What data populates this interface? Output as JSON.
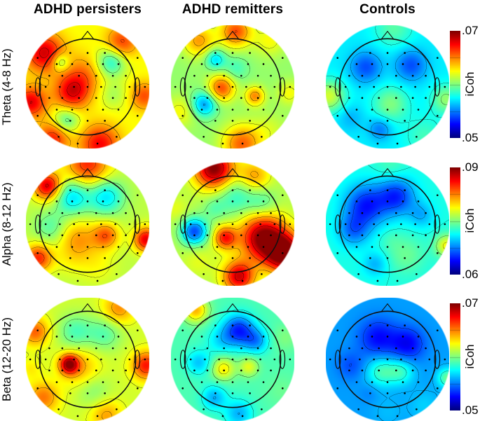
{
  "chart_data": {
    "type": "heatmap",
    "subtype": "eeg-scalp-topography-grid",
    "colormap": "jet",
    "grid": {
      "n_rows": 3,
      "n_cols": 3
    },
    "columns": [
      "ADHD persisters",
      "ADHD remitters",
      "Controls"
    ],
    "rows": [
      "Theta (4-8 Hz)",
      "Alpha (8-12 Hz)",
      "Beta (12-20 Hz)"
    ],
    "colorbars": [
      {
        "row": "Theta (4-8 Hz)",
        "label": "iCoh",
        "min": 0.05,
        "max": 0.07,
        "min_label": ".05",
        "max_label": ".07"
      },
      {
        "row": "Alpha (8-12 Hz)",
        "label": "iCoh",
        "min": 0.06,
        "max": 0.09,
        "min_label": ".06",
        "max_label": ".09"
      },
      {
        "row": "Beta (12-20 Hz)",
        "label": "iCoh",
        "min": 0.05,
        "max": 0.07,
        "min_label": ".05",
        "max_label": ".07"
      }
    ],
    "value_encoding": "base and blob values are normalized 0-1 within the row colorbar range; blobs are [x, y, sigma, value] in head-disk coordinates (x right, y down, radius 1)",
    "contour_levels": 10,
    "maps": [
      {
        "row": "Theta (4-8 Hz)",
        "col": "ADHD persisters",
        "base": 0.62,
        "blobs": [
          [
            -0.25,
            0.08,
            0.2,
            0.9
          ],
          [
            -0.05,
            -0.22,
            0.22,
            0.74
          ],
          [
            0.38,
            -0.4,
            0.17,
            0.4
          ],
          [
            -0.44,
            -0.4,
            0.1,
            0.44
          ],
          [
            -0.35,
            0.55,
            0.15,
            0.44
          ],
          [
            0.42,
            0.12,
            0.16,
            0.54
          ],
          [
            -0.7,
            -0.55,
            0.22,
            0.92
          ],
          [
            0.55,
            -0.72,
            0.18,
            0.82
          ],
          [
            -0.92,
            0.25,
            0.18,
            0.9
          ],
          [
            0.2,
            0.93,
            0.22,
            0.88
          ],
          [
            0.92,
            0.15,
            0.16,
            0.8
          ],
          [
            -0.55,
            0.82,
            0.18,
            0.85
          ]
        ]
      },
      {
        "row": "Theta (4-8 Hz)",
        "col": "ADHD remitters",
        "base": 0.52,
        "blobs": [
          [
            -0.18,
            0.02,
            0.15,
            0.8
          ],
          [
            0.36,
            0.15,
            0.11,
            0.74
          ],
          [
            -0.46,
            0.28,
            0.14,
            0.28
          ],
          [
            -0.28,
            -0.45,
            0.11,
            0.34
          ],
          [
            0.05,
            -0.3,
            0.14,
            0.44
          ],
          [
            0.05,
            -0.9,
            0.18,
            0.8
          ],
          [
            -0.55,
            -0.75,
            0.18,
            0.72
          ],
          [
            0.6,
            -0.75,
            0.18,
            0.62
          ],
          [
            0.15,
            0.93,
            0.22,
            0.78
          ],
          [
            -0.85,
            0.4,
            0.18,
            0.62
          ],
          [
            0.92,
            0.1,
            0.14,
            0.62
          ],
          [
            0.6,
            0.7,
            0.2,
            0.58
          ]
        ]
      },
      {
        "row": "Theta (4-8 Hz)",
        "col": "Controls",
        "base": 0.36,
        "blobs": [
          [
            -0.35,
            -0.32,
            0.18,
            0.2
          ],
          [
            0.38,
            -0.35,
            0.18,
            0.2
          ],
          [
            0.05,
            0.28,
            0.2,
            0.5
          ],
          [
            -0.12,
            0.68,
            0.13,
            0.24
          ],
          [
            -0.95,
            0.15,
            0.18,
            0.58
          ],
          [
            0.95,
            0.2,
            0.16,
            0.52
          ],
          [
            0.1,
            -0.95,
            0.22,
            0.46
          ],
          [
            0.6,
            0.8,
            0.22,
            0.44
          ],
          [
            -0.6,
            0.5,
            0.15,
            0.3
          ]
        ]
      },
      {
        "row": "Alpha (8-12 Hz)",
        "col": "ADHD persisters",
        "base": 0.56,
        "blobs": [
          [
            -0.25,
            -0.45,
            0.2,
            0.34
          ],
          [
            0.3,
            -0.45,
            0.2,
            0.35
          ],
          [
            0.0,
            -0.97,
            0.25,
            0.84
          ],
          [
            -0.65,
            -0.62,
            0.16,
            0.92
          ],
          [
            -0.15,
            0.25,
            0.22,
            0.72
          ],
          [
            0.3,
            0.18,
            0.15,
            0.78
          ],
          [
            0.95,
            0.25,
            0.14,
            0.9
          ],
          [
            -0.8,
            0.55,
            0.16,
            0.84
          ],
          [
            0.15,
            0.65,
            0.22,
            0.62
          ],
          [
            -0.6,
            0.05,
            0.18,
            0.46
          ],
          [
            -0.3,
            0.6,
            0.18,
            0.6
          ]
        ]
      },
      {
        "row": "Alpha (8-12 Hz)",
        "col": "ADHD remitters",
        "base": 0.55,
        "blobs": [
          [
            -0.3,
            -0.9,
            0.22,
            1.0
          ],
          [
            0.35,
            -0.78,
            0.18,
            0.72
          ],
          [
            0.05,
            -0.45,
            0.22,
            0.42
          ],
          [
            0.48,
            -0.35,
            0.17,
            0.45
          ],
          [
            -0.62,
            0.12,
            0.15,
            0.2
          ],
          [
            0.5,
            0.22,
            0.26,
            1.0
          ],
          [
            0.85,
            0.48,
            0.22,
            1.0
          ],
          [
            -0.12,
            0.22,
            0.13,
            0.85
          ],
          [
            0.1,
            0.85,
            0.18,
            0.92
          ],
          [
            -0.55,
            0.6,
            0.18,
            0.6
          ],
          [
            -0.92,
            -0.25,
            0.14,
            0.6
          ],
          [
            -0.3,
            -0.25,
            0.13,
            0.48
          ]
        ]
      },
      {
        "row": "Alpha (8-12 Hz)",
        "col": "Controls",
        "base": 0.4,
        "blobs": [
          [
            -0.35,
            -0.3,
            0.24,
            0.15
          ],
          [
            0.15,
            -0.45,
            0.21,
            0.17
          ],
          [
            -0.55,
            0.1,
            0.18,
            0.24
          ],
          [
            0.3,
            0.5,
            0.22,
            0.48
          ],
          [
            0.96,
            0.35,
            0.13,
            0.62
          ],
          [
            0.05,
            0.25,
            0.13,
            0.43
          ],
          [
            -0.2,
            0.65,
            0.14,
            0.3
          ],
          [
            0.05,
            -0.97,
            0.18,
            0.45
          ],
          [
            0.55,
            -0.15,
            0.15,
            0.3
          ]
        ]
      },
      {
        "row": "Beta (12-20 Hz)",
        "col": "ADHD persisters",
        "base": 0.58,
        "blobs": [
          [
            -0.2,
            -0.45,
            0.2,
            0.45
          ],
          [
            0.28,
            -0.42,
            0.2,
            0.46
          ],
          [
            -0.3,
            0.08,
            0.11,
            0.95
          ],
          [
            -0.12,
            0.14,
            0.22,
            0.7
          ],
          [
            0.95,
            0.1,
            0.16,
            0.86
          ],
          [
            -0.85,
            -0.45,
            0.16,
            0.78
          ],
          [
            0.5,
            -0.82,
            0.18,
            0.74
          ],
          [
            -0.72,
            0.62,
            0.18,
            0.76
          ],
          [
            0.3,
            0.9,
            0.18,
            0.72
          ],
          [
            0.1,
            0.52,
            0.2,
            0.5
          ],
          [
            -0.92,
            0.15,
            0.12,
            0.64
          ]
        ]
      },
      {
        "row": "Beta (12-20 Hz)",
        "col": "ADHD remitters",
        "base": 0.45,
        "blobs": [
          [
            0.1,
            -0.47,
            0.18,
            0.16
          ],
          [
            0.38,
            -0.3,
            0.14,
            0.28
          ],
          [
            -0.2,
            -0.3,
            0.16,
            0.36
          ],
          [
            -0.15,
            0.15,
            0.13,
            0.64
          ],
          [
            0.26,
            0.12,
            0.11,
            0.6
          ],
          [
            -0.55,
            0.05,
            0.14,
            0.32
          ],
          [
            -0.3,
            0.62,
            0.14,
            0.3
          ],
          [
            0.1,
            0.88,
            0.16,
            0.3
          ],
          [
            -0.6,
            -0.8,
            0.14,
            0.7
          ],
          [
            0.85,
            -0.35,
            0.15,
            0.5
          ],
          [
            0.8,
            0.5,
            0.18,
            0.48
          ]
        ]
      },
      {
        "row": "Beta (12-20 Hz)",
        "col": "Controls",
        "base": 0.28,
        "blobs": [
          [
            -0.15,
            -0.35,
            0.22,
            0.13
          ],
          [
            0.33,
            -0.25,
            0.19,
            0.12
          ],
          [
            -0.1,
            0.2,
            0.17,
            0.44
          ],
          [
            0.22,
            0.2,
            0.15,
            0.42
          ],
          [
            -0.6,
            0.1,
            0.16,
            0.2
          ],
          [
            0.97,
            0.3,
            0.11,
            0.48
          ],
          [
            0.0,
            0.85,
            0.18,
            0.31
          ],
          [
            -0.3,
            0.55,
            0.11,
            0.25
          ],
          [
            0.6,
            0.75,
            0.18,
            0.33
          ]
        ]
      }
    ],
    "electrodes": [
      [
        -0.28,
        -0.55
      ],
      [
        0,
        -0.55
      ],
      [
        0.28,
        -0.55
      ],
      [
        -0.5,
        -0.37
      ],
      [
        -0.25,
        -0.37
      ],
      [
        0,
        -0.37
      ],
      [
        0.25,
        -0.37
      ],
      [
        0.5,
        -0.37
      ],
      [
        -0.62,
        -0.18
      ],
      [
        -0.41,
        -0.18
      ],
      [
        -0.14,
        -0.18
      ],
      [
        0.14,
        -0.18
      ],
      [
        0.41,
        -0.18
      ],
      [
        0.62,
        -0.18
      ],
      [
        -0.68,
        0
      ],
      [
        -0.45,
        0
      ],
      [
        -0.22,
        0
      ],
      [
        0,
        0
      ],
      [
        0.22,
        0
      ],
      [
        0.45,
        0
      ],
      [
        0.68,
        0
      ],
      [
        -0.62,
        0.18
      ],
      [
        -0.41,
        0.18
      ],
      [
        -0.14,
        0.18
      ],
      [
        0.14,
        0.18
      ],
      [
        0.41,
        0.18
      ],
      [
        0.62,
        0.18
      ],
      [
        -0.5,
        0.37
      ],
      [
        -0.25,
        0.37
      ],
      [
        0,
        0.37
      ],
      [
        0.25,
        0.37
      ],
      [
        0.5,
        0.37
      ],
      [
        -0.28,
        0.55
      ],
      [
        0,
        0.55
      ],
      [
        0.28,
        0.55
      ],
      [
        0.81,
        -0.47
      ],
      [
        0.93,
        0
      ],
      [
        0.81,
        0.47
      ],
      [
        0.47,
        0.81
      ],
      [
        0.16,
        0.92
      ],
      [
        -0.16,
        0.92
      ],
      [
        -0.47,
        0.81
      ],
      [
        -0.81,
        0.47
      ],
      [
        -0.93,
        0
      ],
      [
        -0.81,
        -0.47
      ]
    ]
  }
}
